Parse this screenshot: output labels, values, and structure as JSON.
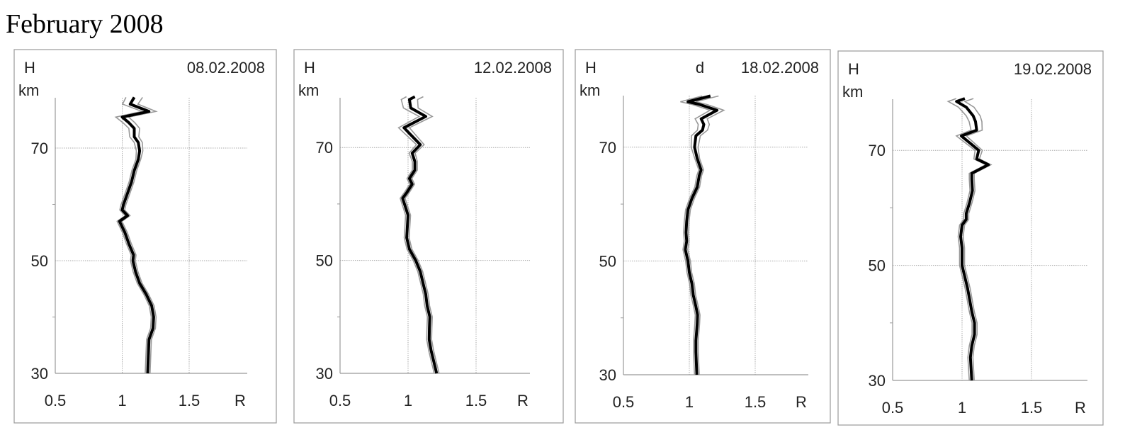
{
  "title": "February 2008",
  "chart_data": [
    {
      "type": "line",
      "date": "08.02.2008",
      "panel_letter": "",
      "ylabel": "H",
      "yunit": "km",
      "xlabel": "R",
      "xticks": [
        "0.5",
        "1",
        "1.5"
      ],
      "yticks": [
        "30",
        "50",
        "70"
      ],
      "xlim": [
        0.5,
        1.93
      ],
      "ylim": [
        30,
        79
      ],
      "grid": {
        "x": [
          1,
          1.5
        ],
        "y": [
          50,
          70
        ]
      },
      "points": [
        [
          1.19,
          30
        ],
        [
          1.2,
          36
        ],
        [
          1.23,
          38
        ],
        [
          1.235,
          40
        ],
        [
          1.22,
          42
        ],
        [
          1.18,
          44
        ],
        [
          1.13,
          46
        ],
        [
          1.1,
          48
        ],
        [
          1.08,
          50
        ],
        [
          1.085,
          51
        ],
        [
          1.05,
          53
        ],
        [
          1.02,
          55
        ],
        [
          0.98,
          57
        ],
        [
          1.04,
          58
        ],
        [
          1.0,
          59
        ],
        [
          1.01,
          60
        ],
        [
          1.04,
          62
        ],
        [
          1.07,
          64
        ],
        [
          1.09,
          66
        ],
        [
          1.12,
          68
        ],
        [
          1.13,
          69.5
        ],
        [
          1.12,
          71
        ],
        [
          1.09,
          72
        ],
        [
          1.09,
          73.5
        ],
        [
          1.05,
          74.5
        ],
        [
          1.0,
          75.5
        ],
        [
          1.2,
          76.5
        ],
        [
          1.06,
          77.8
        ],
        [
          1.09,
          79
        ]
      ]
    },
    {
      "type": "line",
      "date": "12.02.2008",
      "panel_letter": "",
      "ylabel": "H",
      "yunit": "km",
      "xlabel": "R",
      "xticks": [
        "0.5",
        "1",
        "1.5"
      ],
      "yticks": [
        "30",
        "50",
        "70"
      ],
      "xlim": [
        0.5,
        1.93
      ],
      "ylim": [
        30,
        79
      ],
      "grid": {
        "x": [
          1,
          1.5
        ],
        "y": [
          50,
          70
        ]
      },
      "points": [
        [
          1.21,
          30
        ],
        [
          1.19,
          32
        ],
        [
          1.17,
          34
        ],
        [
          1.155,
          36
        ],
        [
          1.157,
          38
        ],
        [
          1.16,
          40
        ],
        [
          1.14,
          42
        ],
        [
          1.13,
          44
        ],
        [
          1.11,
          46
        ],
        [
          1.09,
          48
        ],
        [
          1.056,
          50
        ],
        [
          1.01,
          52
        ],
        [
          0.99,
          54
        ],
        [
          0.995,
          56
        ],
        [
          1.0,
          58
        ],
        [
          0.98,
          59.5
        ],
        [
          0.96,
          61
        ],
        [
          0.99,
          62
        ],
        [
          1.03,
          63.5
        ],
        [
          1.01,
          64.5
        ],
        [
          1.05,
          66
        ],
        [
          1.05,
          67.5
        ],
        [
          1.03,
          69
        ],
        [
          1.09,
          70.5
        ],
        [
          1.01,
          72.5
        ],
        [
          0.97,
          73.5
        ],
        [
          1.13,
          75.5
        ],
        [
          1.02,
          77
        ],
        [
          1.01,
          78.5
        ],
        [
          1.05,
          79
        ]
      ]
    },
    {
      "type": "line",
      "date": "18.02.2008",
      "panel_letter": "d",
      "ylabel": "H",
      "yunit": "km",
      "xlabel": "R",
      "xticks": [
        "0.5",
        "1",
        "1.5"
      ],
      "yticks": [
        "30",
        "50",
        "70"
      ],
      "xlim": [
        0.5,
        1.93
      ],
      "ylim": [
        30,
        79
      ],
      "grid": {
        "x": [
          1,
          1.5
        ],
        "y": [
          50,
          70
        ]
      },
      "points": [
        [
          1.057,
          30
        ],
        [
          1.05,
          34
        ],
        [
          1.05,
          36
        ],
        [
          1.06,
          39
        ],
        [
          1.063,
          40.5
        ],
        [
          1.05,
          42
        ],
        [
          1.03,
          44
        ],
        [
          1.02,
          46
        ],
        [
          1.0,
          48
        ],
        [
          0.99,
          50
        ],
        [
          0.97,
          52
        ],
        [
          0.98,
          53.5
        ],
        [
          0.975,
          55
        ],
        [
          0.98,
          57
        ],
        [
          0.99,
          59
        ],
        [
          1.02,
          61
        ],
        [
          1.06,
          63
        ],
        [
          1.075,
          65
        ],
        [
          1.09,
          66
        ],
        [
          1.06,
          68
        ],
        [
          1.04,
          70
        ],
        [
          1.05,
          72
        ],
        [
          1.1,
          73
        ],
        [
          1.11,
          74
        ],
        [
          1.09,
          75
        ],
        [
          1.21,
          76.5
        ],
        [
          1.08,
          77.5
        ],
        [
          0.99,
          78
        ],
        [
          1.16,
          79
        ]
      ]
    },
    {
      "type": "line",
      "date": "19.02.2008",
      "panel_letter": "",
      "ylabel": "H",
      "yunit": "km",
      "xlabel": "R",
      "xticks": [
        "0.5",
        "1",
        "1.5"
      ],
      "yticks": [
        "30",
        "50",
        "70"
      ],
      "xlim": [
        0.5,
        1.93
      ],
      "ylim": [
        30,
        79
      ],
      "grid": {
        "x": [
          1,
          1.5
        ],
        "y": [
          50,
          70
        ]
      },
      "points": [
        [
          1.07,
          30
        ],
        [
          1.06,
          34
        ],
        [
          1.07,
          36
        ],
        [
          1.09,
          38
        ],
        [
          1.09,
          40
        ],
        [
          1.07,
          42
        ],
        [
          1.055,
          44
        ],
        [
          1.04,
          46
        ],
        [
          1.02,
          48
        ],
        [
          1.0,
          50
        ],
        [
          1.0,
          53
        ],
        [
          0.99,
          55
        ],
        [
          1.0,
          57
        ],
        [
          1.03,
          58
        ],
        [
          1.03,
          59
        ],
        [
          1.055,
          61
        ],
        [
          1.075,
          63
        ],
        [
          1.07,
          65
        ],
        [
          1.07,
          66
        ],
        [
          1.19,
          67.5
        ],
        [
          1.105,
          68.5
        ],
        [
          1.12,
          70
        ],
        [
          1.07,
          71
        ],
        [
          0.995,
          72.5
        ],
        [
          1.105,
          73.5
        ],
        [
          1.097,
          75
        ],
        [
          1.08,
          76
        ],
        [
          1.03,
          77.5
        ],
        [
          0.96,
          78.5
        ],
        [
          1.02,
          79
        ]
      ]
    }
  ],
  "colors": {
    "main_line": "#000000",
    "envelope": "#999999",
    "grid": "#aaaaaa",
    "frame": "#999999"
  }
}
